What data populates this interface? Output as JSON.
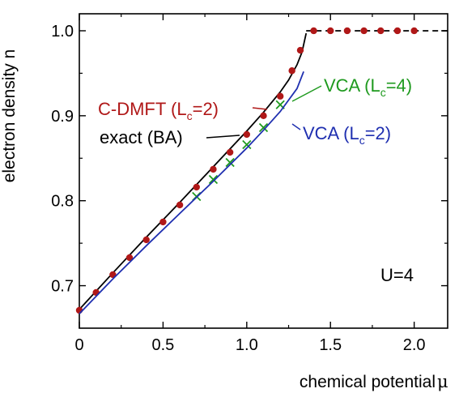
{
  "chart_data": {
    "type": "line",
    "xlabel": "chemical potential",
    "xlabel_symbol": "μ",
    "ylabel": "electron density  n",
    "xlim": [
      0,
      2.2
    ],
    "ylim": [
      0.65,
      1.02
    ],
    "x_ticks": [
      0,
      0.5,
      1.0,
      1.5,
      2.0
    ],
    "x_tick_labels": [
      "0",
      "0.5",
      "1.0",
      "1.5",
      "2.0"
    ],
    "y_ticks": [
      0.7,
      0.8,
      0.9,
      1.0
    ],
    "y_tick_labels": [
      "0.7",
      "0.8",
      "0.9",
      "1.0"
    ],
    "grid": false,
    "colors": {
      "exact": "#000000",
      "cdmft": "#b01818",
      "vca4": "#1f9a1f",
      "vca2": "#1f2fb0"
    },
    "series": [
      {
        "name": "exact (BA)",
        "style": "solid-line",
        "x": [
          0,
          0.2,
          0.4,
          0.6,
          0.8,
          1.0,
          1.1,
          1.2,
          1.25,
          1.3,
          1.33,
          1.355
        ],
        "y": [
          0.672,
          0.715,
          0.757,
          0.798,
          0.84,
          0.882,
          0.904,
          0.928,
          0.942,
          0.96,
          0.975,
          0.997
        ]
      },
      {
        "name": "exact (BA) n=1",
        "style": "dashed-line",
        "x": [
          1.355,
          2.2
        ],
        "y": [
          1.0,
          1.0
        ]
      },
      {
        "name": "C-DMFT (L_c=2)",
        "style": "dots",
        "x": [
          0,
          0.1,
          0.2,
          0.3,
          0.4,
          0.5,
          0.6,
          0.7,
          0.8,
          0.9,
          1.0,
          1.1,
          1.2,
          1.27,
          1.32,
          1.4,
          1.5,
          1.6,
          1.7,
          1.8,
          1.9,
          2.0
        ],
        "y": [
          0.671,
          0.692,
          0.713,
          0.733,
          0.754,
          0.775,
          0.795,
          0.816,
          0.837,
          0.857,
          0.878,
          0.9,
          0.923,
          0.953,
          0.977,
          1.0,
          1.0,
          1.0,
          1.0,
          1.0,
          1.0,
          1.0
        ]
      },
      {
        "name": "VCA (L_c=4)",
        "style": "crosses",
        "x": [
          0.7,
          0.8,
          0.9,
          1.0,
          1.1,
          1.2
        ],
        "y": [
          0.805,
          0.825,
          0.845,
          0.866,
          0.886,
          0.913
        ]
      },
      {
        "name": "VCA (L_c=2)",
        "style": "solid-line",
        "x": [
          0,
          0.2,
          0.4,
          0.6,
          0.8,
          1.0,
          1.1,
          1.2,
          1.3,
          1.34
        ],
        "y": [
          0.667,
          0.708,
          0.747,
          0.785,
          0.823,
          0.862,
          0.883,
          0.905,
          0.932,
          0.952
        ]
      }
    ],
    "annotations": [
      {
        "id": "cdmft",
        "main": "C-DMFT (L",
        "sub": "c",
        "tail": "=2)"
      },
      {
        "id": "exact",
        "main": "exact (BA)",
        "sub": "",
        "tail": ""
      },
      {
        "id": "vca4",
        "main": "VCA (L",
        "sub": "c",
        "tail": "=4)"
      },
      {
        "id": "vca2",
        "main": "VCA (L",
        "sub": "c",
        "tail": "=2)"
      },
      {
        "id": "param",
        "main": "U=4",
        "sub": "",
        "tail": ""
      }
    ]
  }
}
